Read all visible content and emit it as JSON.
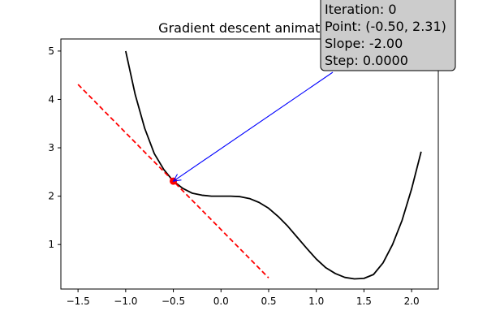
{
  "chart_data": {
    "type": "line",
    "title": "Gradient descent animation",
    "xlabel": "",
    "ylabel": "",
    "xlim": [
      -1.68,
      2.28
    ],
    "ylim": [
      0.08,
      5.25
    ],
    "grid": false,
    "x_ticks": [
      -1.5,
      -1.0,
      -0.5,
      0.0,
      0.5,
      1.0,
      1.5,
      2.0
    ],
    "x_tick_labels": [
      "−1.5",
      "−1.0",
      "−0.5",
      "0.0",
      "0.5",
      "1.0",
      "1.5",
      "2.0"
    ],
    "y_ticks": [
      1,
      2,
      3,
      4,
      5
    ],
    "y_tick_labels": [
      "1",
      "2",
      "3",
      "4",
      "5"
    ],
    "series": [
      {
        "kind": "curve",
        "color": "#000000",
        "points": [
          [
            -1.0,
            5.0
          ],
          [
            -0.9,
            4.1
          ],
          [
            -0.8,
            3.4
          ],
          [
            -0.7,
            2.88
          ],
          [
            -0.6,
            2.55
          ],
          [
            -0.5,
            2.31
          ],
          [
            -0.4,
            2.16
          ],
          [
            -0.3,
            2.06
          ],
          [
            -0.2,
            2.02
          ],
          [
            -0.1,
            2.0
          ],
          [
            0.0,
            2.0
          ],
          [
            0.1,
            2.0
          ],
          [
            0.2,
            1.99
          ],
          [
            0.3,
            1.95
          ],
          [
            0.4,
            1.87
          ],
          [
            0.5,
            1.75
          ],
          [
            0.6,
            1.58
          ],
          [
            0.7,
            1.38
          ],
          [
            0.8,
            1.15
          ],
          [
            0.9,
            0.92
          ],
          [
            1.0,
            0.7
          ],
          [
            1.1,
            0.52
          ],
          [
            1.2,
            0.4
          ],
          [
            1.3,
            0.32
          ],
          [
            1.4,
            0.29
          ],
          [
            1.5,
            0.3
          ],
          [
            1.6,
            0.38
          ],
          [
            1.7,
            0.62
          ],
          [
            1.8,
            1.0
          ],
          [
            1.9,
            1.5
          ],
          [
            2.0,
            2.15
          ],
          [
            2.1,
            2.92
          ]
        ]
      },
      {
        "kind": "tangent",
        "color": "#ff0000",
        "dashed": true,
        "points": [
          [
            -1.5,
            4.31
          ],
          [
            0.5,
            0.31
          ]
        ]
      }
    ],
    "marker": {
      "x": -0.5,
      "y": 2.31,
      "color": "#ff0000"
    },
    "annotation": {
      "lines": [
        "Iteration: 0",
        "Point: (-0.50, 2.31)",
        "Slope: -2.00",
        "Step: 0.0000"
      ],
      "arrow_color": "#0000ff",
      "box_color": "#cccccc"
    }
  }
}
